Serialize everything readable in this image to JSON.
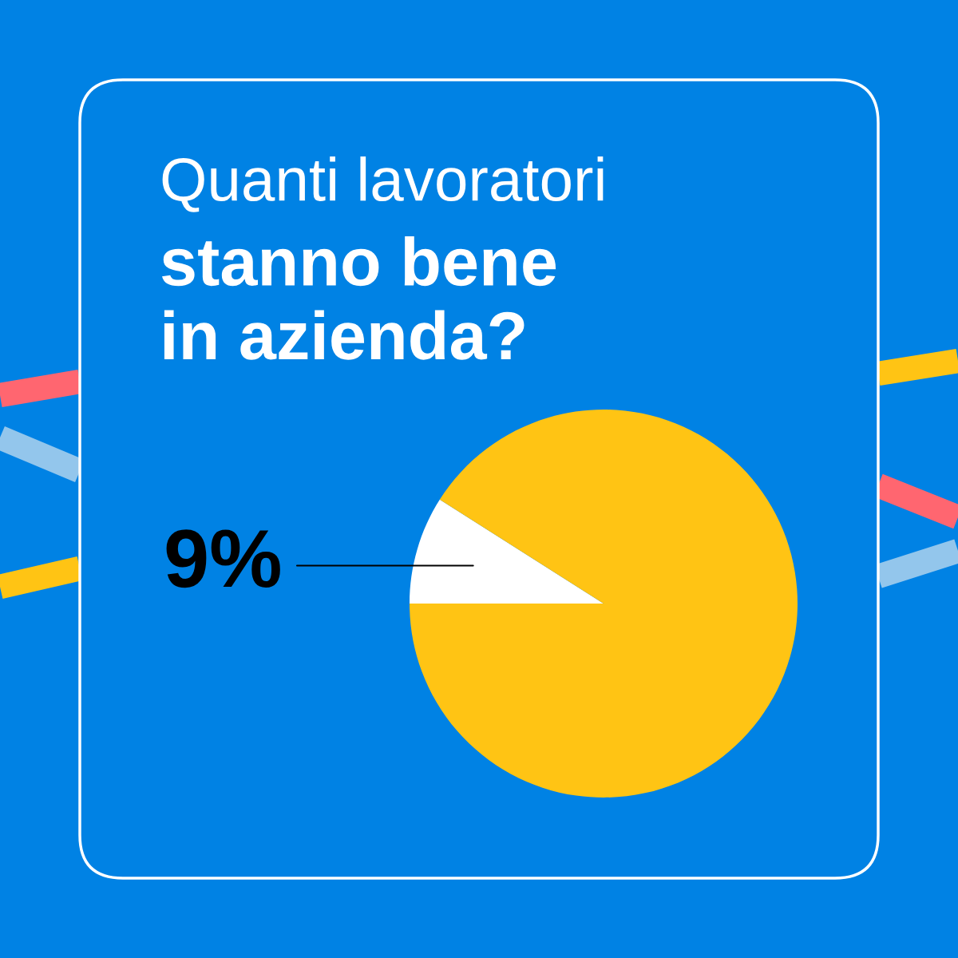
{
  "chart_data": {
    "type": "pie",
    "title": "Quanti lavoratori",
    "subtitle": "stanno bene\nin azienda?",
    "categories": [
      null,
      null
    ],
    "values": [
      9,
      91
    ],
    "colors": [
      "#ffffff",
      "#ffc414"
    ],
    "value_labels": [
      "9%",
      null
    ]
  }
}
